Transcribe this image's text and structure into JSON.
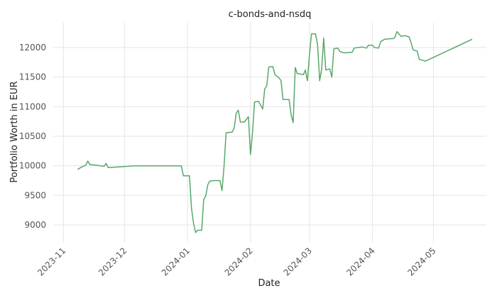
{
  "chart_data": {
    "type": "line",
    "title": "c-bonds-and-nsdq",
    "xlabel": "Date",
    "ylabel": "Portfolio Worth in EUR",
    "x_ticks": [
      "2023-11",
      "2023-12",
      "2024-01",
      "2024-02",
      "2024-03",
      "2024-04",
      "2024-05"
    ],
    "y_ticks": [
      9000,
      9500,
      10000,
      10500,
      11000,
      11500,
      12000
    ],
    "xlim": [
      "2023-10-27",
      "2024-05-27"
    ],
    "ylim": [
      8700,
      12420
    ],
    "grid": true,
    "color": "#59a869",
    "series": [
      {
        "points": [
          [
            "2023-11-08",
            9940
          ],
          [
            "2023-11-10",
            9980
          ],
          [
            "2023-11-12",
            10010
          ],
          [
            "2023-11-13",
            10080
          ],
          [
            "2023-11-14",
            10020
          ],
          [
            "2023-11-17",
            10010
          ],
          [
            "2023-11-21",
            9990
          ],
          [
            "2023-11-22",
            10040
          ],
          [
            "2023-11-23",
            9970
          ],
          [
            "2023-12-06",
            10000
          ],
          [
            "2023-12-29",
            10000
          ],
          [
            "2023-12-30",
            9830
          ],
          [
            "2024-01-02",
            9830
          ],
          [
            "2024-01-03",
            9280
          ],
          [
            "2024-01-04",
            9030
          ],
          [
            "2024-01-05",
            8870
          ],
          [
            "2024-01-06",
            8910
          ],
          [
            "2024-01-08",
            8910
          ],
          [
            "2024-01-09",
            9430
          ],
          [
            "2024-01-10",
            9490
          ],
          [
            "2024-01-11",
            9680
          ],
          [
            "2024-01-12",
            9740
          ],
          [
            "2024-01-14",
            9750
          ],
          [
            "2024-01-17",
            9750
          ],
          [
            "2024-01-18",
            9580
          ],
          [
            "2024-01-19",
            10000
          ],
          [
            "2024-01-20",
            10560
          ],
          [
            "2024-01-23",
            10570
          ],
          [
            "2024-01-24",
            10640
          ],
          [
            "2024-01-25",
            10890
          ],
          [
            "2024-01-26",
            10940
          ],
          [
            "2024-01-27",
            10740
          ],
          [
            "2024-01-29",
            10740
          ],
          [
            "2024-01-31",
            10830
          ],
          [
            "2024-02-01",
            10190
          ],
          [
            "2024-02-02",
            10570
          ],
          [
            "2024-02-03",
            11080
          ],
          [
            "2024-02-05",
            11090
          ],
          [
            "2024-02-07",
            10960
          ],
          [
            "2024-02-08",
            11300
          ],
          [
            "2024-02-09",
            11350
          ],
          [
            "2024-02-10",
            11670
          ],
          [
            "2024-02-12",
            11680
          ],
          [
            "2024-02-13",
            11540
          ],
          [
            "2024-02-15",
            11490
          ],
          [
            "2024-02-16",
            11440
          ],
          [
            "2024-02-17",
            11120
          ],
          [
            "2024-02-20",
            11120
          ],
          [
            "2024-02-21",
            10860
          ],
          [
            "2024-02-22",
            10730
          ],
          [
            "2024-02-23",
            11660
          ],
          [
            "2024-02-24",
            11560
          ],
          [
            "2024-02-26",
            11550
          ],
          [
            "2024-02-27",
            11540
          ],
          [
            "2024-02-28",
            11620
          ],
          [
            "2024-02-29",
            11440
          ],
          [
            "2024-03-01",
            11870
          ],
          [
            "2024-03-02",
            12230
          ],
          [
            "2024-03-04",
            12230
          ],
          [
            "2024-03-05",
            12050
          ],
          [
            "2024-03-06",
            11440
          ],
          [
            "2024-03-07",
            11630
          ],
          [
            "2024-03-08",
            12160
          ],
          [
            "2024-03-09",
            11620
          ],
          [
            "2024-03-11",
            11640
          ],
          [
            "2024-03-12",
            11500
          ],
          [
            "2024-03-13",
            11980
          ],
          [
            "2024-03-15",
            11990
          ],
          [
            "2024-03-16",
            11930
          ],
          [
            "2024-03-18",
            11910
          ],
          [
            "2024-03-22",
            11920
          ],
          [
            "2024-03-23",
            11990
          ],
          [
            "2024-03-25",
            12000
          ],
          [
            "2024-03-27",
            12010
          ],
          [
            "2024-03-29",
            11990
          ],
          [
            "2024-03-30",
            12040
          ],
          [
            "2024-04-01",
            12040
          ],
          [
            "2024-04-02",
            12000
          ],
          [
            "2024-04-04",
            11990
          ],
          [
            "2024-04-05",
            12100
          ],
          [
            "2024-04-07",
            12140
          ],
          [
            "2024-04-10",
            12150
          ],
          [
            "2024-04-11",
            12150
          ],
          [
            "2024-04-12",
            12170
          ],
          [
            "2024-04-13",
            12270
          ],
          [
            "2024-04-14",
            12230
          ],
          [
            "2024-04-15",
            12190
          ],
          [
            "2024-04-17",
            12200
          ],
          [
            "2024-04-19",
            12180
          ],
          [
            "2024-04-20",
            12080
          ],
          [
            "2024-04-21",
            11960
          ],
          [
            "2024-04-23",
            11940
          ],
          [
            "2024-04-24",
            11800
          ],
          [
            "2024-04-26",
            11780
          ],
          [
            "2024-04-27",
            11770
          ],
          [
            "2024-05-20",
            12140
          ]
        ]
      }
    ]
  }
}
